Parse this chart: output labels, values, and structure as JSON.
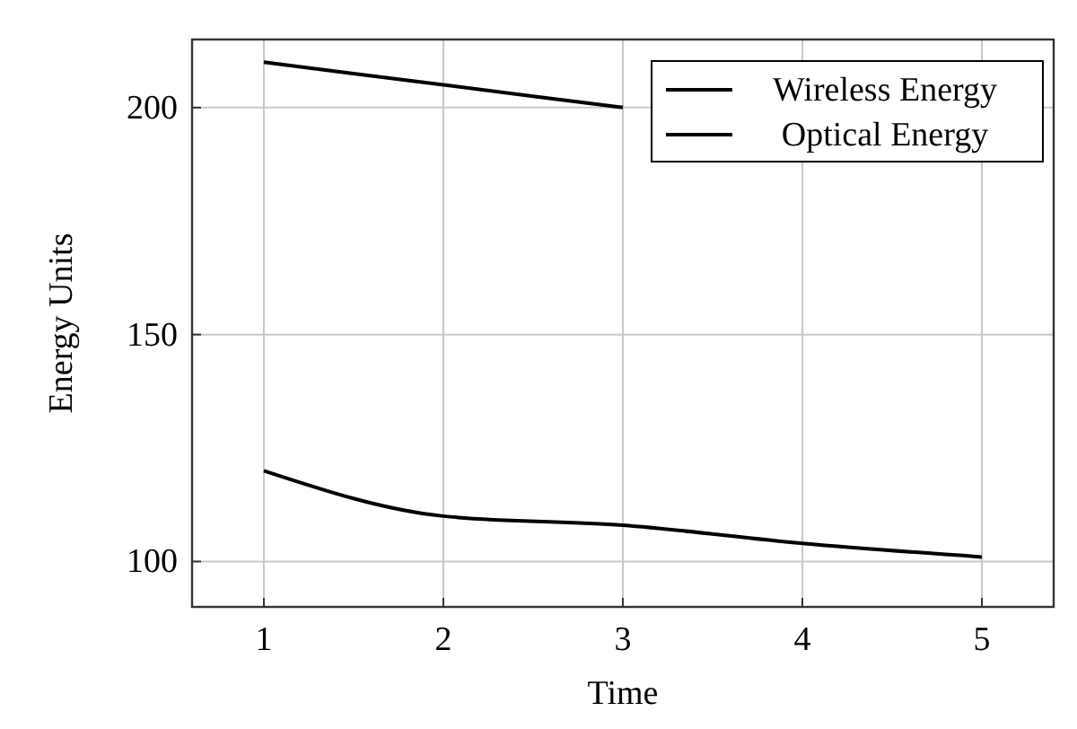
{
  "chart_data": {
    "type": "line",
    "xlabel": "Time",
    "ylabel": "Energy Units",
    "x": [
      1,
      2,
      3,
      4,
      5
    ],
    "series": [
      {
        "name": "Wireless Energy",
        "color": "#000000",
        "values": [
          210,
          205,
          200,
          null,
          null
        ]
      },
      {
        "name": "Optical Energy",
        "color": "#000000",
        "values": [
          120,
          110,
          108,
          104,
          101
        ]
      }
    ],
    "xlim": [
      0.6,
      5.4
    ],
    "ylim": [
      90,
      215
    ],
    "xticks": [
      1,
      2,
      3,
      4,
      5
    ],
    "yticks": [
      100,
      150,
      200
    ],
    "grid": true,
    "legend": "top right",
    "marker": "none",
    "line_style": "solid"
  }
}
